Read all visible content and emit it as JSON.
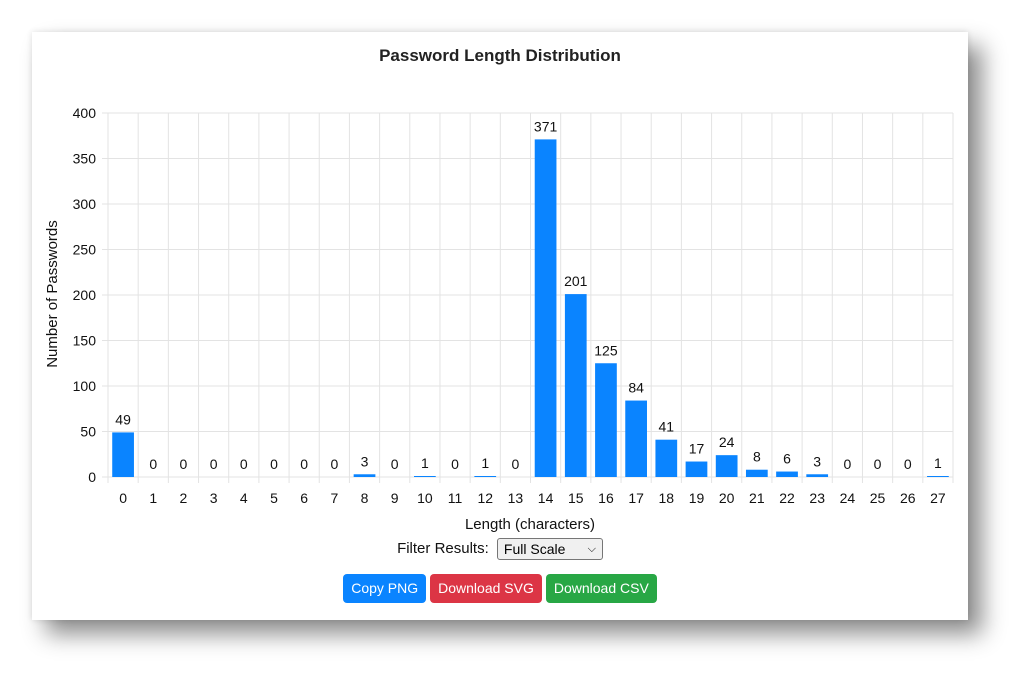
{
  "chart_data": {
    "type": "bar",
    "title": "Password Length Distribution",
    "xlabel": "Length (characters)",
    "ylabel": "Number of Passwords",
    "categories": [
      "0",
      "1",
      "2",
      "3",
      "4",
      "5",
      "6",
      "7",
      "8",
      "9",
      "10",
      "11",
      "12",
      "13",
      "14",
      "15",
      "16",
      "17",
      "18",
      "19",
      "20",
      "21",
      "22",
      "23",
      "24",
      "25",
      "26",
      "27"
    ],
    "values": [
      49,
      0,
      0,
      0,
      0,
      0,
      0,
      0,
      3,
      0,
      1,
      0,
      1,
      0,
      371,
      201,
      125,
      84,
      41,
      17,
      24,
      8,
      6,
      3,
      0,
      0,
      0,
      1
    ],
    "ylim": [
      0,
      400
    ],
    "yticks": [
      "0",
      "50",
      "100",
      "150",
      "200",
      "250",
      "300",
      "350",
      "400"
    ],
    "grid": true,
    "bar_color": "#0a84ff"
  },
  "filter": {
    "label": "Filter Results:",
    "selected": "Full Scale"
  },
  "buttons": {
    "copy_png": "Copy PNG",
    "download_svg": "Download SVG",
    "download_csv": "Download CSV"
  },
  "colors": {
    "copy_png": "#0a84ff",
    "download_svg": "#dc3545",
    "download_csv": "#28a745"
  }
}
